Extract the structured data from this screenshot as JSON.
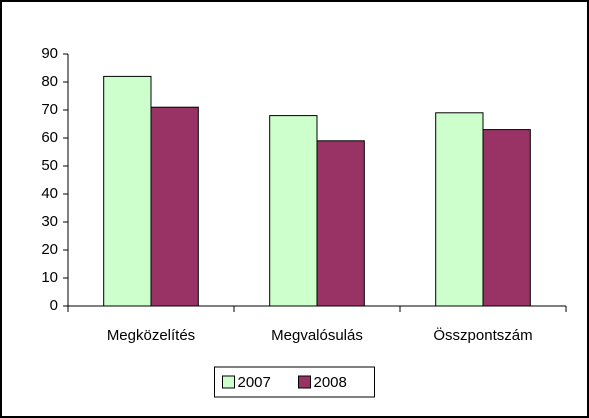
{
  "chart_data": {
    "type": "bar",
    "categories": [
      "Megközelítés",
      "Megvalósulás",
      "Összpontszám"
    ],
    "series": [
      {
        "name": "2007",
        "color": "#ccffcc",
        "values": [
          82,
          68,
          69
        ]
      },
      {
        "name": "2008",
        "color": "#993366",
        "values": [
          71,
          59,
          63
        ]
      }
    ],
    "ylim": [
      0,
      90
    ],
    "yticks": [
      0,
      10,
      20,
      30,
      40,
      50,
      60,
      70,
      80,
      90
    ],
    "grid": false,
    "legend": "bottom"
  }
}
